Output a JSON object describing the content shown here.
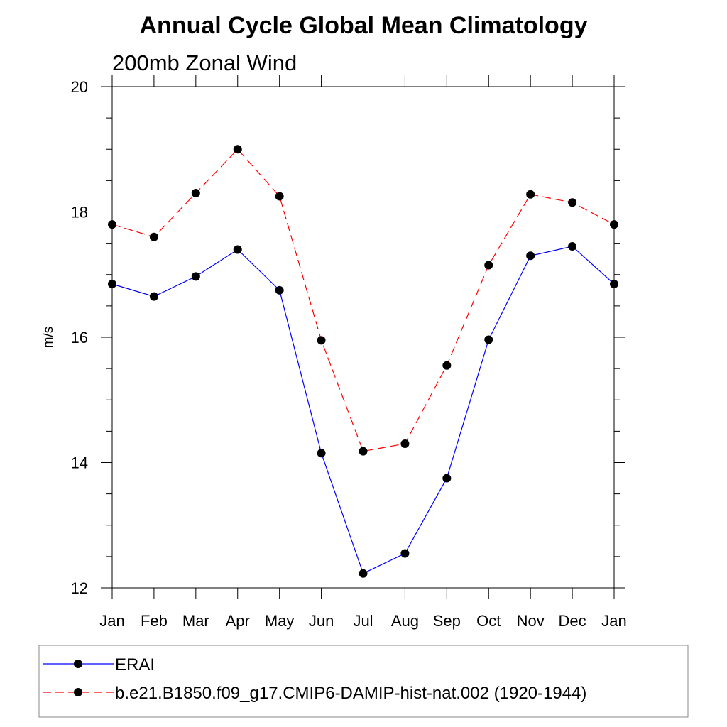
{
  "chart_data": {
    "type": "line",
    "title": "Annual Cycle Global Mean Climatology",
    "subtitle": "200mb Zonal Wind",
    "xlabel": "",
    "ylabel": "m/s",
    "categories": [
      "Jan",
      "Feb",
      "Mar",
      "Apr",
      "May",
      "Jun",
      "Jul",
      "Aug",
      "Sep",
      "Oct",
      "Nov",
      "Dec",
      "Jan"
    ],
    "ylim": [
      12,
      20
    ],
    "yticks": [
      12,
      14,
      16,
      18,
      20
    ],
    "grid": false,
    "legend_position": "bottom",
    "series": [
      {
        "name": "ERAI",
        "color": "#0000ff",
        "dash": "solid",
        "values": [
          16.85,
          16.65,
          16.97,
          17.4,
          16.75,
          14.15,
          12.23,
          12.55,
          13.75,
          15.96,
          17.3,
          17.45,
          16.85
        ]
      },
      {
        "name": "b.e21.B1850.f09_g17.CMIP6-DAMIP-hist-nat.002 (1920-1944)",
        "color": "#ff0000",
        "dash": "dashed",
        "values": [
          17.8,
          17.6,
          18.3,
          19.0,
          18.25,
          15.95,
          14.18,
          14.3,
          15.55,
          17.15,
          18.28,
          18.15,
          17.8
        ]
      }
    ]
  }
}
